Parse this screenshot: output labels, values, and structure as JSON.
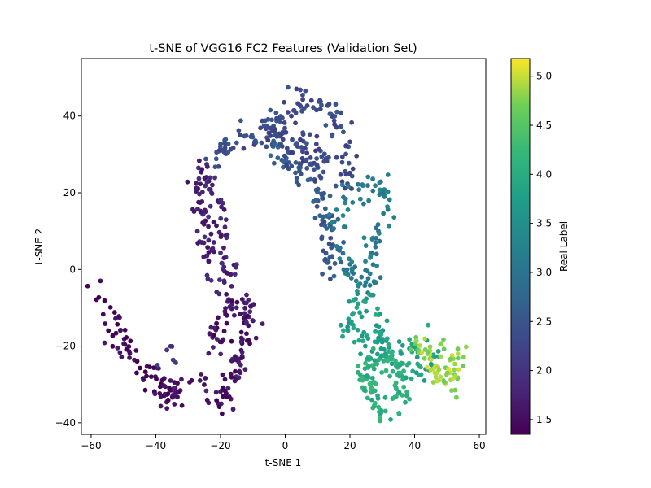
{
  "chart_data": {
    "type": "scatter",
    "title": "t-SNE of VGG16 FC2 Features (Validation Set)",
    "xlabel": "t-SNE 1",
    "ylabel": "t-SNE 2",
    "xlim": [
      -63,
      62
    ],
    "ylim": [
      -43,
      55
    ],
    "xticks": [
      -60,
      -40,
      -20,
      0,
      20,
      40,
      60
    ],
    "yticks": [
      -40,
      -20,
      0,
      20,
      40
    ],
    "colorbar": {
      "label": "Real Label",
      "range": [
        1.35,
        5.18
      ],
      "ticks": [
        1.5,
        2.0,
        2.5,
        3.0,
        3.5,
        4.0,
        4.5,
        5.0
      ],
      "colormap": "viridis"
    },
    "grid": false,
    "clusters": [
      {
        "path": [
          [
            -57,
            -5
          ],
          [
            -54,
            -12
          ],
          [
            -50,
            -18
          ],
          [
            -46,
            -24
          ],
          [
            -42,
            -28
          ],
          [
            -38,
            -33
          ],
          [
            -35,
            -34
          ],
          [
            -32,
            -30
          ]
        ],
        "label": 1.45,
        "count": 75
      },
      {
        "path": [
          [
            -40,
            -25
          ],
          [
            -38,
            -30
          ],
          [
            -35,
            -33
          ],
          [
            -32,
            -31
          ]
        ],
        "label": 1.55,
        "count": 20
      },
      {
        "path": [
          [
            -25,
            -28
          ],
          [
            -23,
            -33
          ],
          [
            -20,
            -34
          ],
          [
            -17,
            -30
          ],
          [
            -14,
            -25
          ],
          [
            -12,
            -18
          ],
          [
            -11,
            -10
          ],
          [
            -14,
            -8
          ],
          [
            -18,
            -10
          ],
          [
            -21,
            -14
          ],
          [
            -22,
            -20
          ]
        ],
        "label": 1.6,
        "count": 120
      },
      {
        "path": [
          [
            -23,
            -2
          ],
          [
            -24,
            8
          ],
          [
            -26,
            15
          ],
          [
            -27,
            22
          ],
          [
            -26,
            26
          ],
          [
            -22,
            20
          ],
          [
            -20,
            12
          ],
          [
            -19,
            4
          ],
          [
            -16,
            -1
          ],
          [
            -21,
            -5
          ]
        ],
        "label": 1.75,
        "count": 110
      },
      {
        "path": [
          [
            -22,
            27
          ],
          [
            -20,
            31
          ],
          [
            -16,
            33
          ],
          [
            -12,
            34
          ],
          [
            -8,
            35
          ],
          [
            -4,
            37
          ],
          [
            0,
            39
          ],
          [
            3,
            42
          ],
          [
            5,
            46
          ],
          [
            8,
            44
          ],
          [
            12,
            42
          ],
          [
            16,
            38
          ],
          [
            19,
            34
          ],
          [
            20,
            28
          ],
          [
            19,
            22
          ]
        ],
        "label": 2.35,
        "count": 130
      },
      {
        "path": [
          [
            -4,
            33
          ],
          [
            -1,
            30
          ],
          [
            2,
            27
          ],
          [
            5,
            25
          ],
          [
            8,
            22
          ],
          [
            11,
            18
          ],
          [
            13,
            14
          ],
          [
            13,
            9
          ],
          [
            14,
            5
          ],
          [
            14,
            1
          ],
          [
            16,
            -2
          ]
        ],
        "label": 2.6,
        "count": 90
      },
      {
        "path": [
          [
            -6,
            32
          ],
          [
            -2,
            36
          ],
          [
            1,
            33
          ],
          [
            4,
            30
          ],
          [
            7,
            28
          ],
          [
            10,
            26
          ],
          [
            12,
            29
          ],
          [
            8,
            33
          ],
          [
            5,
            36
          ]
        ],
        "label": 2.3,
        "count": 70
      },
      {
        "path": [
          [
            16,
            12
          ],
          [
            18,
            18
          ],
          [
            22,
            20
          ],
          [
            26,
            21
          ],
          [
            30,
            22
          ],
          [
            31,
            18
          ],
          [
            30,
            12
          ],
          [
            28,
            8
          ],
          [
            27,
            4
          ],
          [
            28,
            -2
          ],
          [
            26,
            -4
          ],
          [
            22,
            -3
          ],
          [
            19,
            2
          ],
          [
            17,
            4
          ]
        ],
        "label": 3.15,
        "count": 100
      },
      {
        "path": [
          [
            23,
            -5
          ],
          [
            22,
            -10
          ],
          [
            20,
            -15
          ],
          [
            22,
            -18
          ],
          [
            26,
            -20
          ],
          [
            30,
            -21
          ],
          [
            29,
            -15
          ],
          [
            28,
            -8
          ]
        ],
        "label": 3.75,
        "count": 70
      },
      {
        "path": [
          [
            24,
            -24
          ],
          [
            25,
            -28
          ],
          [
            26,
            -32
          ],
          [
            28,
            -36
          ],
          [
            32,
            -37
          ],
          [
            35,
            -33
          ],
          [
            36,
            -28
          ],
          [
            34,
            -24
          ],
          [
            30,
            -22
          ],
          [
            27,
            -26
          ]
        ],
        "label": 4.05,
        "count": 110
      },
      {
        "path": [
          [
            31,
            -22
          ],
          [
            36,
            -21
          ],
          [
            40,
            -21
          ],
          [
            44,
            -22
          ],
          [
            47,
            -23
          ],
          [
            43,
            -27
          ],
          [
            38,
            -26
          ]
        ],
        "label": 3.85,
        "count": 45
      },
      {
        "path": [
          [
            40,
            -20
          ],
          [
            44,
            -21
          ],
          [
            48,
            -21
          ],
          [
            51,
            -22
          ],
          [
            54,
            -22
          ],
          [
            52,
            -27
          ],
          [
            50,
            -30
          ],
          [
            48,
            -27
          ],
          [
            46,
            -24
          ]
        ],
        "label": 4.85,
        "count": 70
      },
      {
        "path": [
          [
            -37,
            -25
          ],
          [
            -35,
            -22
          ],
          [
            -30,
            -20
          ]
        ],
        "label": 2.1,
        "count": 6
      }
    ]
  }
}
